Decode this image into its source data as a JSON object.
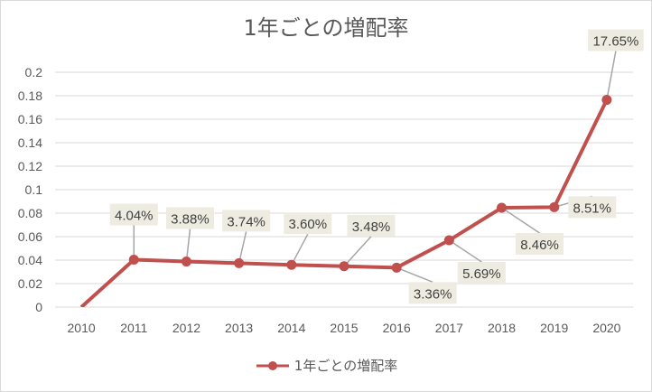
{
  "chart_data": {
    "type": "line",
    "title": "1年ごとの増配率",
    "xlabel": "",
    "ylabel": "",
    "categories": [
      "2010",
      "2011",
      "2012",
      "2013",
      "2014",
      "2015",
      "2016",
      "2017",
      "2018",
      "2019",
      "2020"
    ],
    "series": [
      {
        "name": "1年ごとの増配率",
        "values": [
          0,
          0.0404,
          0.0388,
          0.0374,
          0.036,
          0.0348,
          0.0336,
          0.0569,
          0.0846,
          0.0851,
          0.1765
        ],
        "labels": [
          "",
          "4.04%",
          "3.88%",
          "3.74%",
          "3.60%",
          "3.48%",
          "3.36%",
          "5.69%",
          "8.46%",
          "8.51%",
          "17.65%"
        ]
      }
    ],
    "ylim": [
      0,
      0.2
    ],
    "yticks": [
      "0",
      "0.02",
      "0.04",
      "0.06",
      "0.08",
      "0.1",
      "0.12",
      "0.14",
      "0.16",
      "0.18",
      "0.2"
    ],
    "grid": true,
    "legend_position": "bottom",
    "series_color": "#c0504d",
    "label_box_color": "#eeece1",
    "leader_line_color": "#a6a6a6"
  }
}
